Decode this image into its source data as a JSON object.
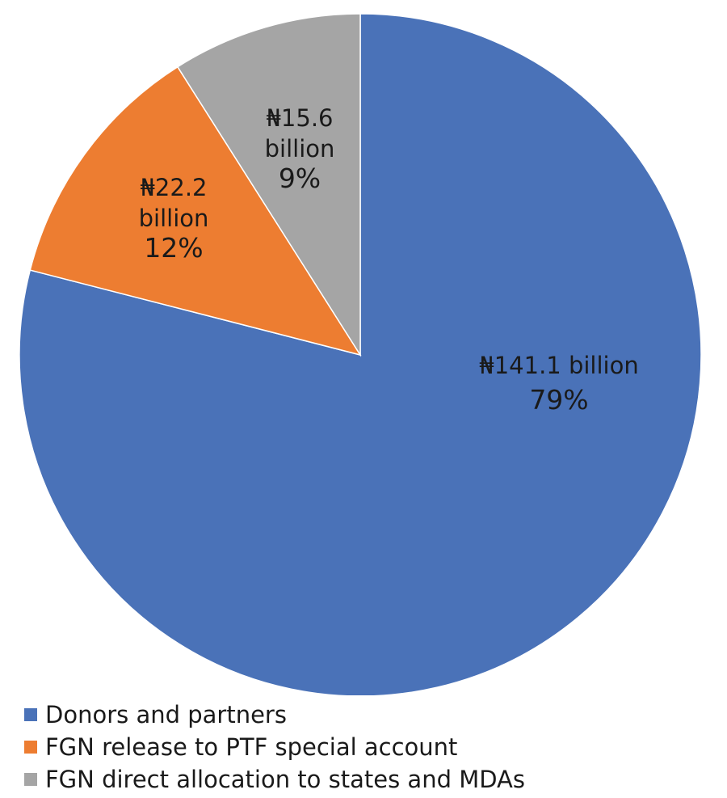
{
  "chart_data": {
    "type": "pie",
    "start_angle_deg": 0,
    "direction": "clockwise",
    "slices": [
      {
        "name": "Donors and partners",
        "value": 141.1,
        "percent": 79,
        "label_lines": [
          "₦141.1 billion"
        ],
        "label_percent": "79%",
        "color": "#4a72b8"
      },
      {
        "name": "FGN release to PTF special account",
        "value": 22.2,
        "percent": 12,
        "label_lines": [
          "₦22.2",
          "billion"
        ],
        "label_percent": "12%",
        "color": "#ed7d31"
      },
      {
        "name": "FGN direct allocation to states and MDAs",
        "value": 15.6,
        "percent": 9,
        "label_lines": [
          "₦15.6",
          "billion"
        ],
        "label_percent": "9%",
        "color": "#a5a5a5"
      }
    ],
    "legend_position": "bottom-left"
  }
}
